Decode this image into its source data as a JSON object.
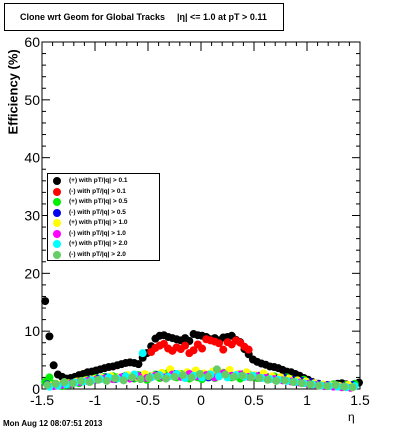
{
  "title": "Clone wrt Geom for Global Tracks",
  "title_extra": "|η| <= 1.0 at pT > 0.11",
  "timestamp": "Mon Aug 12 08:07:51 2013",
  "chart_data": {
    "type": "scatter",
    "title": "Clone wrt Geom for Global Tracks",
    "xlabel": "η",
    "ylabel": "Efficiency (%)",
    "xlim": [
      -1.5,
      1.5
    ],
    "ylim": [
      0,
      60
    ],
    "xticks": [
      -1.5,
      -1,
      -0.5,
      0,
      0.5,
      1,
      1.5
    ],
    "xtick_labels": [
      "-1.5",
      "-1",
      "-0.5",
      "0",
      "0.5",
      "1",
      "1.5"
    ],
    "yticks": [
      0,
      10,
      20,
      30,
      40,
      50,
      60
    ],
    "ytick_labels": [
      "0",
      "10",
      "20",
      "30",
      "40",
      "50",
      "60"
    ],
    "legend_position": "middle-left",
    "series": [
      {
        "name": "(+) with pT/|q| > 0.1",
        "color": "#000000",
        "x": [
          -1.47,
          -1.43,
          -1.39,
          -1.35,
          -1.31,
          -1.27,
          -1.23,
          -1.19,
          -1.15,
          -1.11,
          -1.07,
          -1.03,
          -0.99,
          -0.95,
          -0.91,
          -0.87,
          -0.83,
          -0.79,
          -0.75,
          -0.71,
          -0.67,
          -0.63,
          -0.59,
          -0.55,
          -0.51,
          -0.47,
          -0.43,
          -0.39,
          -0.35,
          -0.31,
          -0.27,
          -0.23,
          -0.19,
          -0.15,
          -0.11,
          -0.07,
          -0.03,
          0.01,
          0.05,
          0.09,
          0.13,
          0.17,
          0.21,
          0.25,
          0.29,
          0.33,
          0.37,
          0.41,
          0.45,
          0.49,
          0.53,
          0.57,
          0.61,
          0.65,
          0.69,
          0.73,
          0.77,
          0.81,
          0.85,
          0.89,
          0.93,
          0.97,
          1.01,
          1.05,
          1.09,
          1.13,
          1.17,
          1.21,
          1.25,
          1.29,
          1.33,
          1.37,
          1.41,
          1.45,
          1.49
        ],
        "y": [
          15.2,
          9.1,
          4.1,
          2.5,
          2.1,
          1.8,
          1.9,
          2.1,
          2.4,
          2.6,
          2.9,
          3.0,
          3.2,
          3.4,
          3.6,
          3.8,
          3.9,
          4.1,
          4.3,
          4.5,
          4.6,
          4.5,
          4.3,
          5.4,
          6.2,
          7.4,
          8.7,
          9.2,
          9.3,
          9.0,
          8.8,
          8.6,
          8.4,
          8.8,
          8.3,
          9.5,
          9.3,
          9.2,
          9.0,
          8.6,
          8.8,
          8.4,
          8.9,
          9.0,
          9.2,
          8.5,
          8.1,
          6.9,
          6.0,
          5.1,
          4.7,
          4.4,
          4.2,
          3.9,
          3.8,
          3.6,
          3.3,
          3.0,
          2.9,
          2.6,
          2.3,
          1.9,
          1.6,
          1.2,
          0.9,
          0.7,
          0.5,
          0.6,
          0.8,
          0.9,
          1.0,
          0.8,
          0.3,
          0.7,
          1.1
        ]
      },
      {
        "name": "(-) with pT/|q| > 0.1",
        "color": "#ff0000",
        "x": [
          -0.47,
          -0.43,
          -0.39,
          -0.35,
          -0.31,
          -0.27,
          -0.23,
          -0.19,
          -0.15,
          -0.11,
          -0.07,
          -0.03,
          0.01,
          0.05,
          0.09,
          0.13,
          0.17,
          0.21,
          0.25,
          0.29,
          0.33,
          0.37,
          0.41,
          0.45
        ],
        "y": [
          6.4,
          7.1,
          7.5,
          7.8,
          7.0,
          6.6,
          7.2,
          6.9,
          7.5,
          6.2,
          6.7,
          7.7,
          7.0,
          8.6,
          8.4,
          8.2,
          7.9,
          6.8,
          8.1,
          7.7,
          8.4,
          8.0,
          7.3,
          6.8
        ]
      },
      {
        "name": "(+) with pT/|q| > 0.5",
        "color": "#00ee00",
        "x": [
          -1.47,
          -1.43,
          -1.39,
          -1.35,
          -1.31,
          -1.27,
          -1.23,
          -1.19,
          -1.15,
          -1.11,
          -1.07,
          -1.03,
          -0.99,
          -0.95,
          -0.91,
          -0.87,
          -0.83,
          -0.79,
          -0.75,
          -0.71,
          -0.67,
          -0.63,
          -0.59,
          -0.55,
          -0.51,
          -0.47,
          -0.43,
          -0.39,
          -0.35,
          -0.31,
          -0.27,
          -0.23,
          -0.19,
          -0.15,
          -0.11,
          -0.07,
          -0.03,
          0.01,
          0.05,
          0.09,
          0.13,
          0.17,
          0.21,
          0.25,
          0.29,
          0.33,
          0.37,
          0.41,
          0.45,
          0.49,
          0.53,
          0.57,
          0.61,
          0.65,
          0.69,
          0.73,
          0.77,
          0.81,
          0.85,
          0.89,
          0.93,
          0.97,
          1.01,
          1.05,
          1.09,
          1.13,
          1.17,
          1.21,
          1.25,
          1.29,
          1.33,
          1.37,
          1.41,
          1.45
        ],
        "y": [
          1.2,
          2.0,
          0.9,
          0.6,
          0.5,
          0.7,
          0.8,
          1.2,
          1.0,
          1.4,
          1.6,
          1.5,
          1.9,
          1.7,
          2.1,
          1.8,
          2.2,
          2.0,
          1.9,
          2.3,
          2.1,
          1.8,
          2.4,
          2.0,
          1.6,
          2.2,
          2.5,
          1.9,
          2.1,
          2.8,
          2.4,
          2.0,
          2.6,
          2.2,
          1.8,
          2.4,
          2.0,
          1.7,
          2.3,
          2.6,
          1.9,
          2.2,
          2.8,
          2.4,
          2.0,
          2.3,
          1.8,
          2.1,
          2.5,
          2.2,
          1.9,
          2.3,
          2.0,
          1.8,
          2.2,
          1.9,
          1.6,
          2.0,
          1.7,
          1.5,
          1.3,
          1.6,
          1.2,
          1.0,
          0.9,
          0.7,
          0.6,
          0.5,
          0.8,
          0.6,
          0.4,
          0.7,
          0.5,
          0.9
        ]
      },
      {
        "name": "(-) with pT/|q| > 0.5",
        "color": "#0000ee",
        "x": [
          -1.45,
          -1.37,
          -1.29,
          -1.21,
          -1.13,
          -1.05,
          -0.97,
          -0.89,
          -0.81,
          -0.73,
          -0.65,
          -0.57,
          -0.49,
          -0.41,
          -0.33,
          -0.25,
          -0.17,
          -0.09,
          -0.01,
          0.07,
          0.15,
          0.23,
          0.31,
          0.39,
          0.47,
          0.55,
          0.63,
          0.71,
          0.79,
          0.87,
          0.95,
          1.03,
          1.11,
          1.19,
          1.27,
          1.35,
          1.43
        ],
        "y": [
          0.8,
          0.6,
          0.9,
          1.1,
          1.3,
          1.5,
          1.8,
          2.0,
          1.7,
          2.1,
          1.9,
          2.2,
          2.0,
          2.4,
          2.1,
          2.6,
          2.2,
          2.5,
          2.3,
          2.0,
          2.4,
          2.6,
          2.2,
          2.5,
          2.1,
          2.3,
          2.0,
          1.8,
          1.9,
          1.6,
          1.4,
          1.2,
          0.9,
          0.7,
          0.6,
          0.5,
          0.7
        ]
      },
      {
        "name": "(+) with pT/|q| > 1.0",
        "color": "#ffff00",
        "x": [
          -1.41,
          -1.33,
          -1.25,
          -1.17,
          -1.09,
          -1.01,
          -0.93,
          -0.85,
          -0.77,
          -0.69,
          -0.61,
          -0.53,
          -0.45,
          -0.37,
          -0.29,
          -0.21,
          -0.13,
          -0.05,
          0.03,
          0.11,
          0.19,
          0.27,
          0.35,
          0.43,
          0.51,
          0.59,
          0.67,
          0.75,
          0.83,
          0.91,
          0.99,
          1.07,
          1.15,
          1.23,
          1.31,
          1.39
        ],
        "y": [
          0.6,
          0.8,
          1.0,
          1.3,
          1.5,
          1.7,
          1.9,
          2.2,
          2.0,
          2.4,
          2.1,
          2.6,
          2.3,
          2.8,
          3.4,
          2.6,
          2.9,
          3.2,
          2.7,
          3.0,
          2.8,
          3.3,
          2.6,
          2.9,
          2.4,
          2.7,
          2.2,
          2.0,
          1.8,
          1.5,
          1.3,
          1.0,
          0.8,
          0.6,
          0.5,
          0.7
        ]
      },
      {
        "name": "(-) with pT/|q| > 1.0",
        "color": "#ff00ff",
        "x": [
          -1.39,
          -1.31,
          -1.23,
          -1.15,
          -1.07,
          -0.99,
          -0.91,
          -0.83,
          -0.75,
          -0.67,
          -0.59,
          -0.51,
          -0.43,
          -0.35,
          -0.27,
          -0.19,
          -0.11,
          -0.03,
          0.05,
          0.13,
          0.21,
          0.29,
          0.37,
          0.45,
          0.53,
          0.61,
          0.69,
          0.77,
          0.85,
          0.93,
          1.01,
          1.09,
          1.17,
          1.25,
          1.33,
          1.41
        ],
        "y": [
          0.5,
          0.7,
          0.9,
          1.2,
          1.4,
          1.6,
          1.8,
          1.7,
          2.0,
          1.8,
          2.2,
          1.9,
          2.3,
          2.0,
          2.5,
          2.1,
          2.6,
          2.2,
          2.4,
          2.0,
          2.7,
          2.3,
          2.5,
          2.1,
          2.2,
          1.9,
          1.7,
          1.5,
          1.3,
          1.1,
          0.9,
          0.7,
          0.5,
          0.4,
          0.3,
          0.2
        ]
      },
      {
        "name": "(+) with pT/|q| > 2.0",
        "color": "#00ffff",
        "x": [
          -1.43,
          -1.35,
          -1.27,
          -1.19,
          -1.11,
          -1.03,
          -0.95,
          -0.87,
          -0.79,
          -0.71,
          -0.63,
          -0.55,
          -0.47,
          -0.39,
          -0.31,
          -0.23,
          -0.15,
          -0.07,
          0.01,
          0.09,
          0.17,
          0.25,
          0.33,
          0.41,
          0.49,
          0.57,
          0.65,
          0.73,
          0.81,
          0.89,
          0.97,
          1.05,
          1.13,
          1.21,
          1.29,
          1.37,
          1.45
        ],
        "y": [
          0.4,
          0.6,
          0.8,
          1.1,
          1.3,
          1.5,
          1.7,
          2.0,
          1.8,
          2.2,
          2.5,
          6.2,
          2.0,
          2.4,
          2.1,
          2.6,
          1.9,
          2.3,
          2.0,
          2.5,
          2.2,
          2.0,
          2.4,
          2.1,
          2.3,
          1.9,
          1.7,
          1.6,
          1.4,
          1.2,
          1.0,
          0.8,
          0.6,
          0.5,
          0.4,
          0.3,
          0.5
        ]
      },
      {
        "name": "(-) with pT/|q| > 2.0",
        "color": "#66cc66",
        "x": [
          -1.45,
          -1.37,
          -1.29,
          -1.21,
          -1.13,
          -1.05,
          -0.97,
          -0.89,
          -0.81,
          -0.73,
          -0.65,
          -0.57,
          -0.49,
          -0.41,
          -0.33,
          -0.25,
          -0.17,
          -0.09,
          -0.01,
          0.07,
          0.15,
          0.23,
          0.31,
          0.39,
          0.47,
          0.55,
          0.63,
          0.71,
          0.79,
          0.87,
          0.95,
          1.03,
          1.11,
          1.19,
          1.27,
          1.35,
          1.43
        ],
        "y": [
          0.7,
          0.9,
          1.2,
          1.0,
          1.4,
          1.2,
          1.6,
          1.4,
          1.8,
          1.5,
          2.0,
          1.7,
          1.9,
          2.2,
          1.8,
          2.1,
          2.4,
          2.0,
          2.6,
          2.2,
          3.4,
          2.5,
          2.1,
          2.3,
          2.0,
          1.9,
          1.6,
          1.4,
          1.5,
          1.2,
          1.0,
          0.8,
          0.6,
          0.5,
          0.7,
          0.4,
          0.3
        ]
      }
    ]
  }
}
